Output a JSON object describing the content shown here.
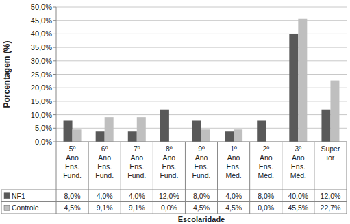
{
  "chart_data": {
    "type": "bar",
    "y_label": "Porcentagem (%)",
    "x_label": "Escolaridade",
    "categories": [
      "5º\nAno\nEns.\nFund.",
      "6º\nAno\nEns.\nFund.",
      "7º\nAno\nEns.\nFund.",
      "8º\nAno\nEns.\nFund.",
      "9º\nAno\nEns.\nFund.",
      "1º\nAno\nEns.\nMéd.",
      "2º\nAno\nEns.\nMéd.",
      "3º\nAno\nEns.\nMéd.",
      "Super\nior"
    ],
    "series": [
      {
        "name": "NF1",
        "color": "#595959",
        "values": [
          8.0,
          4.0,
          4.0,
          12.0,
          8.0,
          4.0,
          8.0,
          40.0,
          12.0
        ],
        "value_labels": [
          "8,0%",
          "4,0%",
          "4,0%",
          "12,0%",
          "8,0%",
          "4,0%",
          "8,0%",
          "40,0%",
          "12,0%"
        ]
      },
      {
        "name": "Controle",
        "color": "#bfbfbf",
        "values": [
          4.5,
          9.1,
          9.1,
          0.0,
          4.5,
          4.5,
          0.0,
          45.5,
          22.7
        ],
        "value_labels": [
          "4,5%",
          "9,1%",
          "9,1%",
          "0,0%",
          "4,5%",
          "4,5%",
          "0,0%",
          "45,5%",
          "22,7%"
        ]
      }
    ],
    "ylim": [
      0,
      50
    ],
    "yticks": [
      {
        "value": 0,
        "label": "0,0%"
      },
      {
        "value": 5,
        "label": "5,0%"
      },
      {
        "value": 10,
        "label": "10,0%"
      },
      {
        "value": 15,
        "label": "15,0%"
      },
      {
        "value": 20,
        "label": "20,0%"
      },
      {
        "value": 25,
        "label": "25,0%"
      },
      {
        "value": 30,
        "label": "30,0%"
      },
      {
        "value": 35,
        "label": "35,0%"
      },
      {
        "value": 40,
        "label": "40,0%"
      },
      {
        "value": 45,
        "label": "45,0%"
      },
      {
        "value": 50,
        "label": "50,0%"
      }
    ],
    "grid": true
  }
}
